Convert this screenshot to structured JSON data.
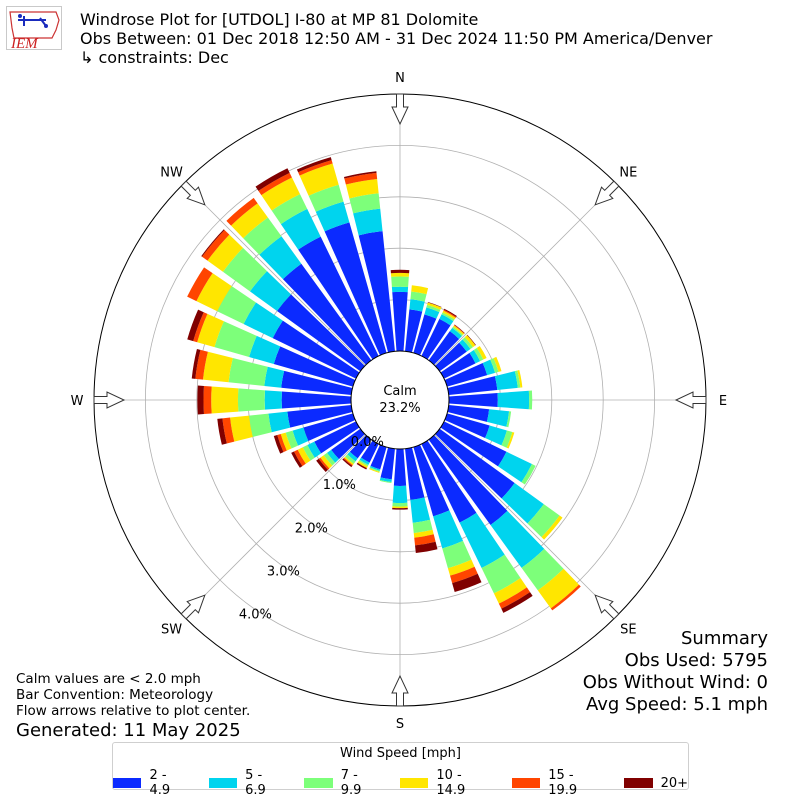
{
  "logo_text": "IEM",
  "header": {
    "title": "Windrose Plot for [UTDOL] I-80 at MP 81 Dolomite",
    "obs_between": "Obs Between: 01 Dec 2018 12:50 AM - 31 Dec 2024 11:50 PM America/Denver",
    "constraints": "↳ constraints: Dec"
  },
  "summary": {
    "title": "Summary",
    "obs_used": "Obs Used: 5795",
    "obs_without_wind": "Obs Without Wind: 0",
    "avg_speed": "Avg Speed: 5.1 mph"
  },
  "notes": {
    "calm_note": "Calm values are < 2.0 mph",
    "bar_convention": "Bar Convention: Meteorology",
    "flow_arrows": "Flow arrows relative to plot center.",
    "generated": "Generated: 11 May 2025"
  },
  "chart_data": {
    "type": "windrose",
    "directions_deg": [
      0,
      10,
      20,
      30,
      40,
      50,
      60,
      70,
      80,
      90,
      100,
      110,
      120,
      130,
      140,
      150,
      160,
      170,
      180,
      190,
      200,
      210,
      220,
      230,
      240,
      250,
      260,
      270,
      280,
      290,
      300,
      310,
      320,
      330,
      340,
      350
    ],
    "compass_labels": [
      {
        "label": "N",
        "deg": 0
      },
      {
        "label": "NE",
        "deg": 45
      },
      {
        "label": "E",
        "deg": 90
      },
      {
        "label": "SE",
        "deg": 135
      },
      {
        "label": "S",
        "deg": 180
      },
      {
        "label": "SW",
        "deg": 225
      },
      {
        "label": "W",
        "deg": 270
      },
      {
        "label": "NW",
        "deg": 315
      }
    ],
    "calm": {
      "label": "Calm",
      "value": "23.2%"
    },
    "radial_ticks": [
      {
        "label": "0.0%",
        "value": 0
      },
      {
        "label": "1.0%",
        "value": 1
      },
      {
        "label": "2.0%",
        "value": 2
      },
      {
        "label": "3.0%",
        "value": 3
      },
      {
        "label": "4.0%",
        "value": 4
      }
    ],
    "rmax": 5,
    "legend_title": "Wind Speed [mph]",
    "bins": [
      {
        "label": "2 - 4.9",
        "color": "#0b2aff"
      },
      {
        "label": "5 - 6.9",
        "color": "#00d4ee"
      },
      {
        "label": "7 - 9.9",
        "color": "#7dff7a"
      },
      {
        "label": "10 - 14.9",
        "color": "#ffe600"
      },
      {
        "label": "15 - 19.9",
        "color": "#ff4500"
      },
      {
        "label": "20+",
        "color": "#800000"
      }
    ],
    "cumulative_percent": [
      [
        1.15,
        1.25,
        1.45,
        1.52,
        1.52,
        1.58
      ],
      [
        0.82,
        1.02,
        1.17,
        1.29,
        1.29,
        1.29
      ],
      [
        0.78,
        0.92,
        0.97,
        1.02,
        1.02,
        1.03
      ],
      [
        0.8,
        0.9,
        0.94,
        0.98,
        1.0,
        1.02
      ],
      [
        0.7,
        0.78,
        0.81,
        0.84,
        0.85,
        0.86
      ],
      [
        0.65,
        0.74,
        0.8,
        0.86,
        0.86,
        0.87
      ],
      [
        0.68,
        0.78,
        0.85,
        0.92,
        0.92,
        0.92
      ],
      [
        0.81,
        0.97,
        1.04,
        1.1,
        1.1,
        1.1
      ],
      [
        0.95,
        1.35,
        1.4,
        1.44,
        1.44,
        1.44
      ],
      [
        0.95,
        1.56,
        1.62,
        1.62,
        1.62,
        1.62
      ],
      [
        0.79,
        1.18,
        1.22,
        1.22,
        1.22,
        1.22
      ],
      [
        0.86,
        1.21,
        1.32,
        1.36,
        1.36,
        1.36
      ],
      [
        1.35,
        1.9,
        1.98,
        1.98,
        1.98,
        1.98
      ],
      [
        1.8,
        2.5,
        2.88,
        2.95,
        2.95,
        2.95
      ],
      [
        2.05,
        3.08,
        3.62,
        4.05,
        4.1,
        4.1
      ],
      [
        1.7,
        2.68,
        3.23,
        3.45,
        3.56,
        3.65
      ],
      [
        1.4,
        2.05,
        2.45,
        2.6,
        2.75,
        2.93
      ],
      [
        1.0,
        1.45,
        1.65,
        1.74,
        1.89,
        2.04
      ],
      [
        0.72,
        1.05,
        1.12,
        1.15,
        1.15,
        1.18
      ],
      [
        0.6,
        0.65,
        0.67,
        0.67,
        0.67,
        0.67
      ],
      [
        0.45,
        0.48,
        0.5,
        0.52,
        0.52,
        0.52
      ],
      [
        0.4,
        0.45,
        0.48,
        0.52,
        0.52,
        0.55
      ],
      [
        0.45,
        0.52,
        0.58,
        0.61,
        0.63,
        0.66
      ],
      [
        0.7,
        0.8,
        0.88,
        0.96,
        1.0,
        1.06
      ],
      [
        0.9,
        1.05,
        1.15,
        1.26,
        1.34,
        1.4
      ],
      [
        1.0,
        1.22,
        1.36,
        1.46,
        1.53,
        1.6
      ],
      [
        1.25,
        1.62,
        2.0,
        2.37,
        2.52,
        2.62
      ],
      [
        1.35,
        1.68,
        2.2,
        2.72,
        2.87,
        2.99
      ],
      [
        1.37,
        1.7,
        2.4,
        2.9,
        3.05,
        3.12
      ],
      [
        1.6,
        2.1,
        2.8,
        3.15,
        3.23,
        3.35
      ],
      [
        1.8,
        2.43,
        3.0,
        3.45,
        3.65,
        3.65
      ],
      [
        2.0,
        2.65,
        3.3,
        3.67,
        3.8,
        3.82
      ],
      [
        2.32,
        2.98,
        3.43,
        3.77,
        3.9,
        3.9
      ],
      [
        2.58,
        3.18,
        3.5,
        3.86,
        3.96,
        4.06
      ],
      [
        2.64,
        3.06,
        3.4,
        3.83,
        3.9,
        3.96
      ],
      [
        2.35,
        2.79,
        3.09,
        3.37,
        3.49,
        3.52
      ]
    ]
  }
}
